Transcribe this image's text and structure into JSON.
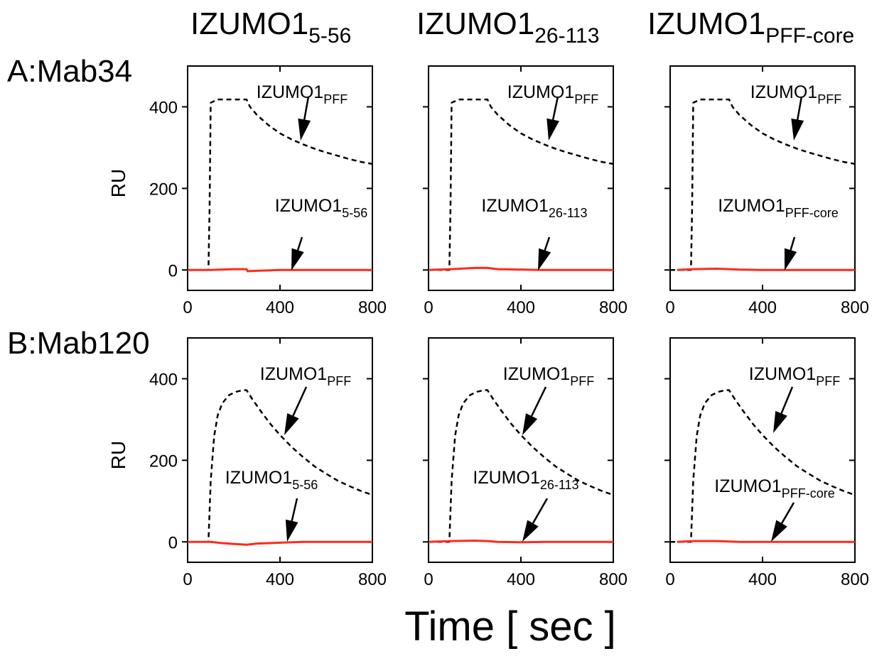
{
  "figure": {
    "column_titles": [
      {
        "main": "IZUMO1",
        "sub": "5-56"
      },
      {
        "main": "IZUMO1",
        "sub": "26-113"
      },
      {
        "main": "IZUMO1",
        "sub": "PFF-core"
      }
    ],
    "row_labels": [
      "A:Mab34",
      "B:Mab120"
    ],
    "xlabel": "Time [ sec ]",
    "ylabel": "RU"
  },
  "colors": {
    "reference_trace": "#000000",
    "sample_trace": "#ff2a1a"
  },
  "chart_data": [
    {
      "type": "line",
      "panel": "A-1",
      "xlim": [
        0,
        800
      ],
      "ylim": [
        -50,
        500
      ],
      "xticks": [
        0,
        400,
        800
      ],
      "yticks": [
        0,
        200,
        400
      ],
      "ylabel": "RU",
      "series": [
        {
          "name": "IZUMO1 PFF",
          "label_main": "IZUMO1",
          "label_sub": "PFF",
          "style": "dashed",
          "color": "#000000",
          "x": [
            0,
            90,
            95,
            100,
            130,
            255,
            270,
            300,
            350,
            400,
            450,
            500,
            550,
            600,
            650,
            700,
            750,
            800
          ],
          "y": [
            0,
            0,
            150,
            410,
            418,
            418,
            400,
            380,
            355,
            335,
            320,
            308,
            297,
            288,
            280,
            272,
            265,
            260
          ]
        },
        {
          "name": "IZUMO1 5-56",
          "label_main": "IZUMO1",
          "label_sub": "5-56",
          "style": "solid",
          "color": "#ff2a1a",
          "x": [
            0,
            100,
            200,
            255,
            260,
            300,
            400,
            500,
            600,
            700,
            800
          ],
          "y": [
            0,
            0,
            2,
            2,
            -3,
            -2,
            0,
            0,
            0,
            0,
            0
          ]
        }
      ]
    },
    {
      "type": "line",
      "panel": "A-2",
      "xlim": [
        0,
        800
      ],
      "ylim": [
        -50,
        500
      ],
      "xticks": [
        0,
        400,
        800
      ],
      "yticks": [
        0,
        200,
        400
      ],
      "ylabel": "RU",
      "series": [
        {
          "name": "IZUMO1 PFF",
          "label_main": "IZUMO1",
          "label_sub": "PFF",
          "style": "dashed",
          "color": "#000000",
          "x": [
            0,
            90,
            95,
            100,
            130,
            255,
            270,
            300,
            350,
            400,
            450,
            500,
            550,
            600,
            650,
            700,
            750,
            800
          ],
          "y": [
            0,
            0,
            150,
            410,
            418,
            418,
            400,
            380,
            355,
            335,
            320,
            308,
            297,
            288,
            280,
            272,
            265,
            260
          ]
        },
        {
          "name": "IZUMO1 26-113",
          "label_main": "IZUMO1",
          "label_sub": "26-113",
          "style": "solid",
          "color": "#ff2a1a",
          "x": [
            0,
            100,
            200,
            255,
            300,
            400,
            500,
            600,
            700,
            800
          ],
          "y": [
            0,
            2,
            5,
            5,
            2,
            1,
            0,
            0,
            0,
            0
          ]
        }
      ]
    },
    {
      "type": "line",
      "panel": "A-3",
      "xlim": [
        0,
        800
      ],
      "ylim": [
        -50,
        500
      ],
      "xticks": [
        0,
        400,
        800
      ],
      "yticks": [
        0,
        200,
        400
      ],
      "ylabel": "RU",
      "series": [
        {
          "name": "IZUMO1 PFF",
          "label_main": "IZUMO1",
          "label_sub": "PFF",
          "style": "dashed",
          "color": "#000000",
          "x": [
            0,
            90,
            95,
            100,
            130,
            255,
            270,
            300,
            350,
            400,
            450,
            500,
            550,
            600,
            650,
            700,
            750,
            800
          ],
          "y": [
            0,
            0,
            150,
            410,
            418,
            418,
            400,
            380,
            355,
            335,
            320,
            308,
            297,
            288,
            280,
            272,
            265,
            260
          ]
        },
        {
          "name": "IZUMO1 PFF-core",
          "label_main": "IZUMO1",
          "label_sub": "PFF-core",
          "style": "solid",
          "color": "#ff2a1a",
          "x": [
            30,
            100,
            200,
            255,
            300,
            400,
            500,
            600,
            700,
            800
          ],
          "y": [
            0,
            2,
            3,
            2,
            1,
            0,
            0,
            0,
            0,
            0
          ]
        }
      ]
    },
    {
      "type": "line",
      "panel": "B-1",
      "xlim": [
        0,
        800
      ],
      "ylim": [
        -50,
        500
      ],
      "xticks": [
        0,
        400,
        800
      ],
      "yticks": [
        0,
        200,
        400
      ],
      "ylabel": "RU",
      "series": [
        {
          "name": "IZUMO1 PFF",
          "label_main": "IZUMO1",
          "label_sub": "PFF",
          "style": "dashed",
          "color": "#000000",
          "x": [
            0,
            90,
            100,
            115,
            130,
            150,
            180,
            210,
            240,
            255,
            280,
            320,
            360,
            400,
            450,
            500,
            550,
            600,
            650,
            700,
            750,
            800
          ],
          "y": [
            0,
            0,
            150,
            260,
            310,
            340,
            360,
            368,
            372,
            372,
            350,
            318,
            288,
            262,
            233,
            208,
            185,
            167,
            150,
            137,
            125,
            115
          ]
        },
        {
          "name": "IZUMO1 5-56",
          "label_main": "IZUMO1",
          "label_sub": "5-56",
          "style": "solid",
          "color": "#ff2a1a",
          "x": [
            0,
            100,
            150,
            200,
            255,
            300,
            400,
            500,
            600,
            700,
            800
          ],
          "y": [
            0,
            0,
            -3,
            -5,
            -7,
            -4,
            -2,
            0,
            0,
            0,
            0
          ]
        }
      ]
    },
    {
      "type": "line",
      "panel": "B-2",
      "xlim": [
        0,
        800
      ],
      "ylim": [
        -50,
        500
      ],
      "xticks": [
        0,
        400,
        800
      ],
      "yticks": [
        0,
        200,
        400
      ],
      "ylabel": "RU",
      "series": [
        {
          "name": "IZUMO1 PFF",
          "label_main": "IZUMO1",
          "label_sub": "PFF",
          "style": "dashed",
          "color": "#000000",
          "x": [
            0,
            90,
            100,
            115,
            130,
            150,
            180,
            210,
            240,
            255,
            280,
            320,
            360,
            400,
            450,
            500,
            550,
            600,
            650,
            700,
            750,
            800
          ],
          "y": [
            0,
            0,
            150,
            260,
            310,
            340,
            360,
            368,
            372,
            372,
            350,
            318,
            288,
            262,
            233,
            208,
            185,
            167,
            150,
            137,
            125,
            115
          ]
        },
        {
          "name": "IZUMO1 26-113",
          "label_main": "IZUMO1",
          "label_sub": "26-113",
          "style": "solid",
          "color": "#ff2a1a",
          "x": [
            0,
            100,
            200,
            255,
            300,
            400,
            500,
            600,
            700,
            800
          ],
          "y": [
            0,
            2,
            3,
            2,
            0,
            -1,
            0,
            0,
            0,
            0
          ]
        }
      ]
    },
    {
      "type": "line",
      "panel": "B-3",
      "xlim": [
        0,
        800
      ],
      "ylim": [
        -50,
        500
      ],
      "xticks": [
        0,
        400,
        800
      ],
      "yticks": [
        0,
        200,
        400
      ],
      "ylabel": "RU",
      "series": [
        {
          "name": "IZUMO1 PFF",
          "label_main": "IZUMO1",
          "label_sub": "PFF",
          "style": "dashed",
          "color": "#000000",
          "x": [
            0,
            90,
            100,
            115,
            130,
            150,
            180,
            210,
            240,
            255,
            280,
            320,
            360,
            400,
            450,
            500,
            550,
            600,
            650,
            700,
            750,
            800
          ],
          "y": [
            0,
            0,
            150,
            260,
            310,
            340,
            360,
            368,
            372,
            372,
            350,
            318,
            288,
            262,
            233,
            208,
            185,
            167,
            150,
            137,
            125,
            115
          ]
        },
        {
          "name": "IZUMO1 PFF-core",
          "label_main": "IZUMO1",
          "label_sub": "PFF-core",
          "style": "solid",
          "color": "#ff2a1a",
          "x": [
            30,
            100,
            200,
            255,
            300,
            400,
            500,
            600,
            700,
            800
          ],
          "y": [
            0,
            2,
            2,
            1,
            0,
            0,
            0,
            0,
            0,
            0
          ]
        }
      ]
    }
  ]
}
